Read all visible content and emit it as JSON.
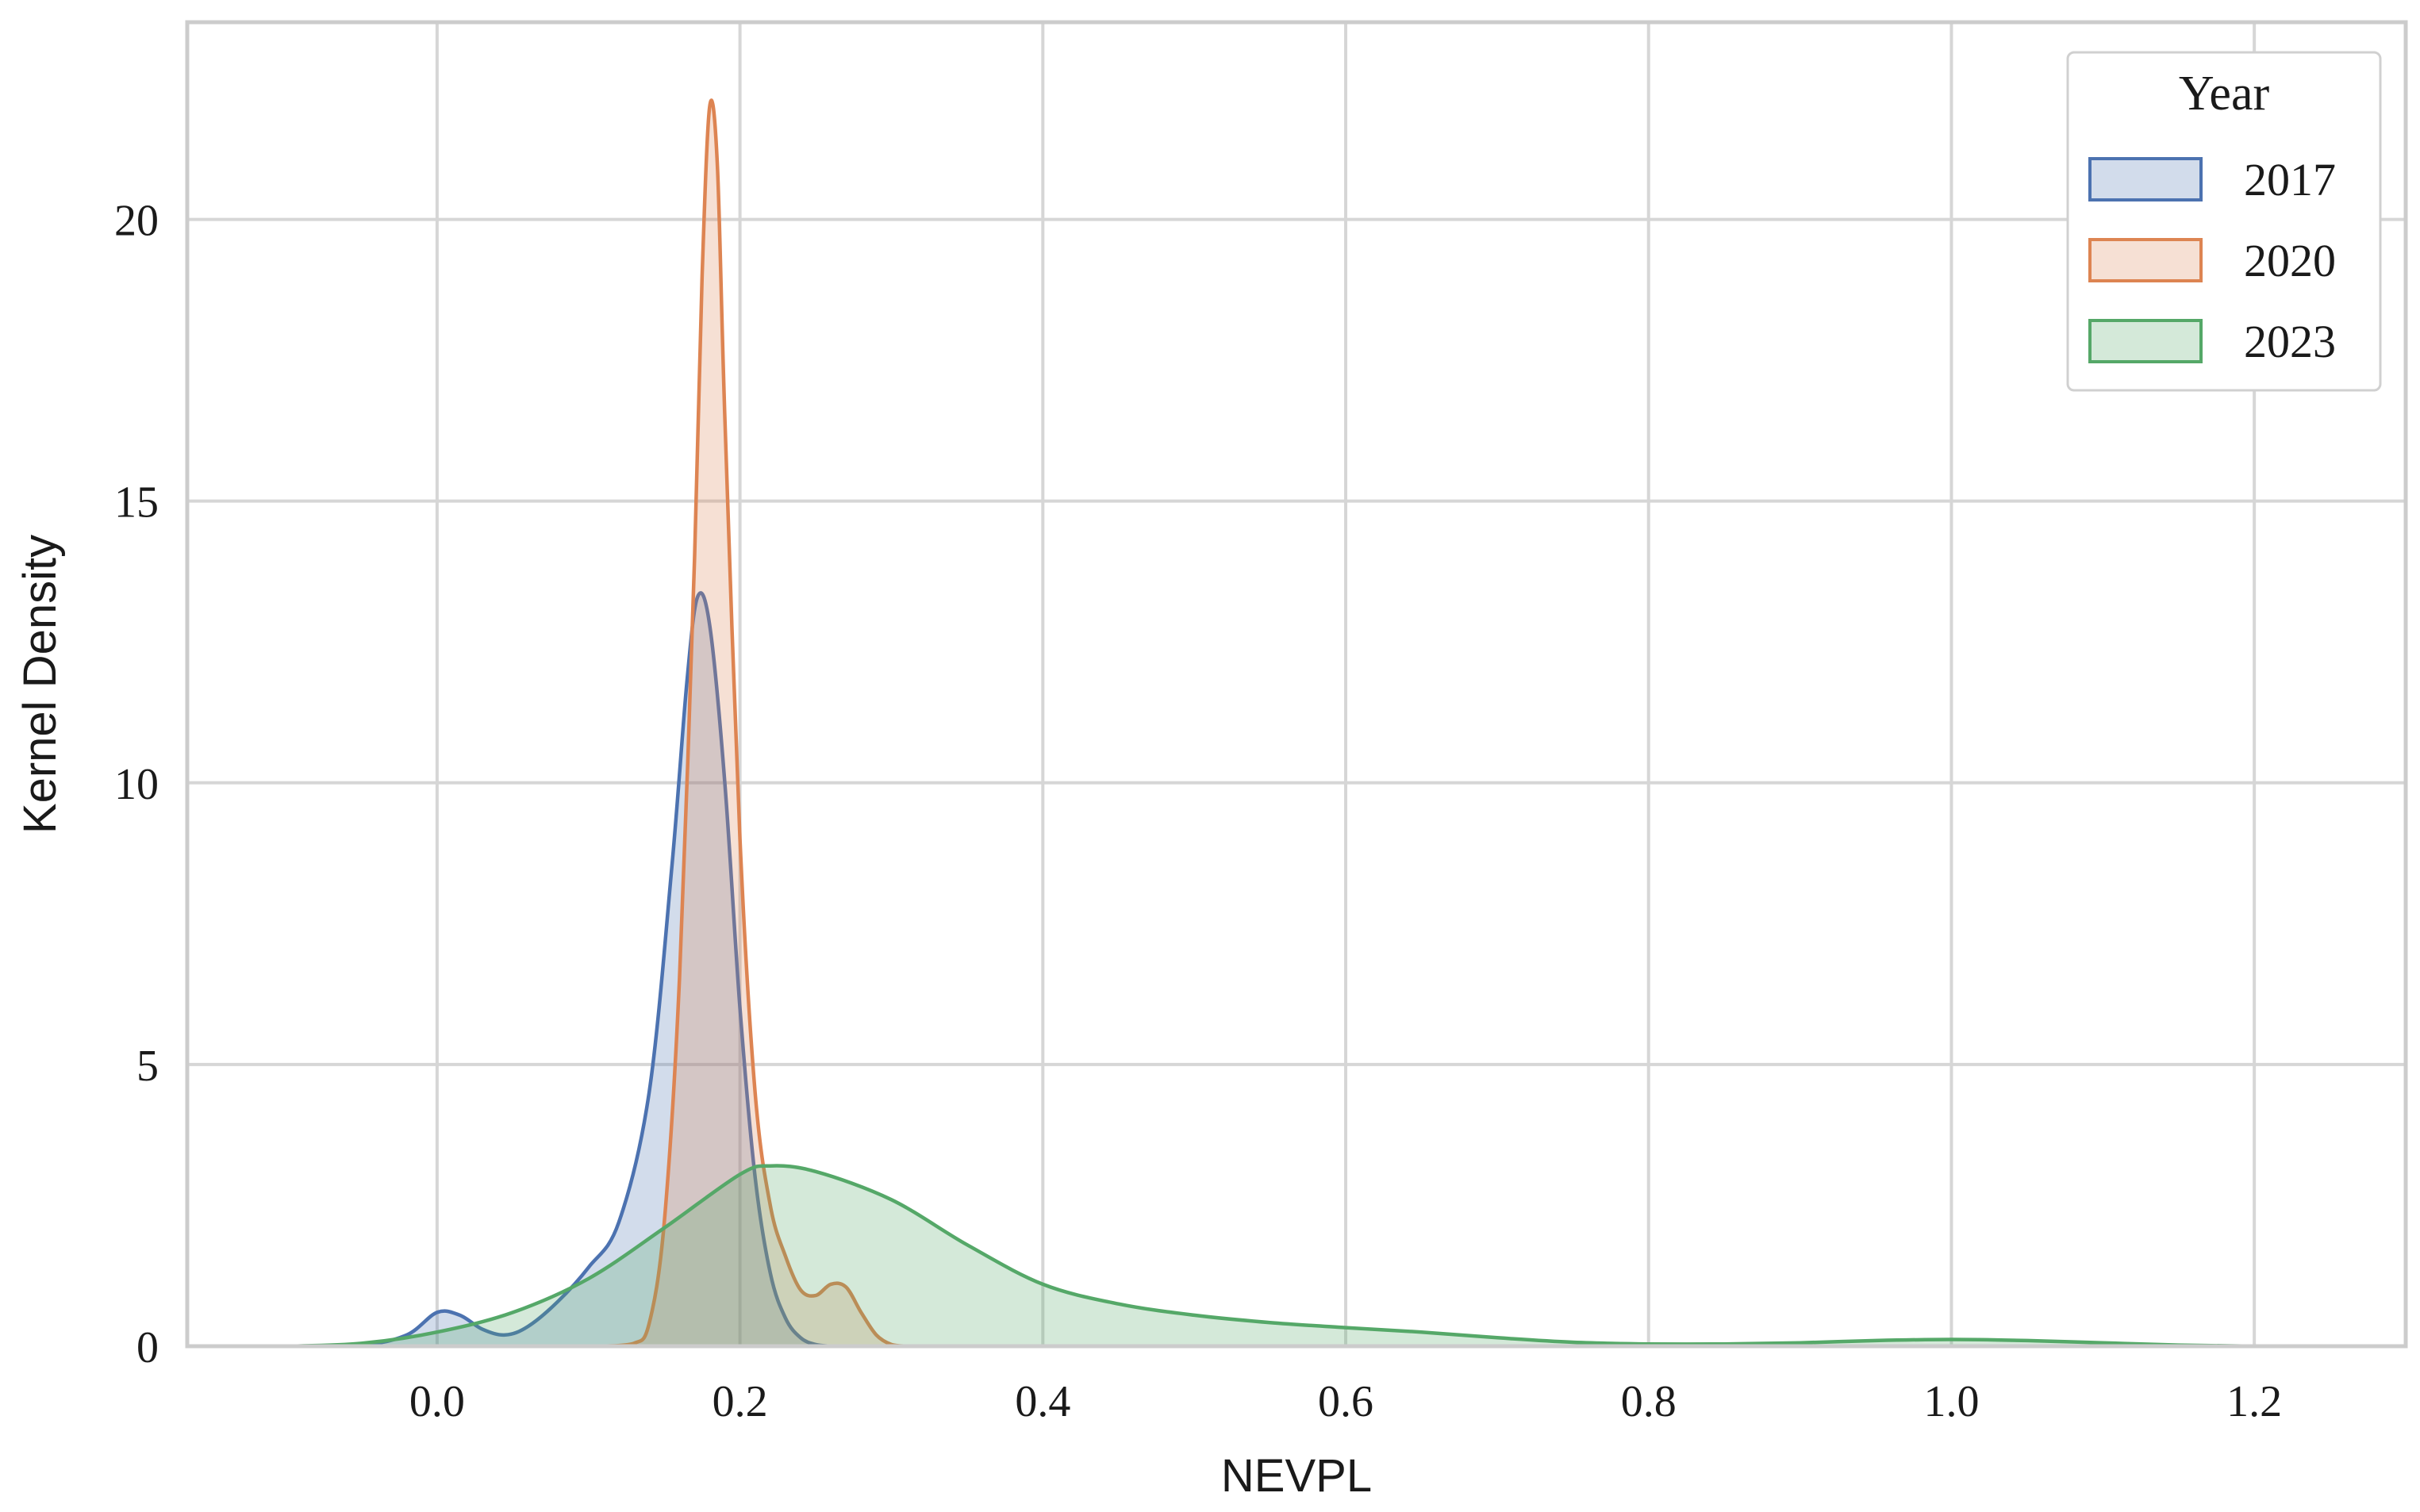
{
  "chart_data": {
    "type": "area",
    "title": "",
    "xlabel": "NEVPL",
    "ylabel": "Kernel Density",
    "xlim": [
      -0.165,
      1.3
    ],
    "ylim": [
      0,
      23.5
    ],
    "xticks": [
      0.0,
      0.2,
      0.4,
      0.6,
      0.8,
      1.0,
      1.2
    ],
    "xtick_labels": [
      "0.0",
      "0.2",
      "0.4",
      "0.6",
      "0.8",
      "1.0",
      "1.2"
    ],
    "yticks": [
      0,
      5,
      10,
      15,
      20
    ],
    "ytick_labels": [
      "0",
      "5",
      "10",
      "15",
      "20"
    ],
    "grid": true,
    "legend": {
      "title": "Year",
      "placement": "top-right"
    },
    "series": [
      {
        "name": "2017",
        "color": "#4c72b0",
        "fill_opacity": 0.25,
        "points": [
          [
            -0.1,
            0.0
          ],
          [
            -0.05,
            0.02
          ],
          [
            -0.02,
            0.2
          ],
          [
            0.0,
            0.6
          ],
          [
            0.015,
            0.55
          ],
          [
            0.03,
            0.3
          ],
          [
            0.045,
            0.2
          ],
          [
            0.06,
            0.35
          ],
          [
            0.08,
            0.8
          ],
          [
            0.1,
            1.4
          ],
          [
            0.12,
            2.2
          ],
          [
            0.14,
            4.5
          ],
          [
            0.155,
            8.5
          ],
          [
            0.165,
            11.8
          ],
          [
            0.172,
            13.3
          ],
          [
            0.18,
            12.8
          ],
          [
            0.19,
            10.0
          ],
          [
            0.2,
            6.0
          ],
          [
            0.21,
            3.0
          ],
          [
            0.22,
            1.3
          ],
          [
            0.23,
            0.5
          ],
          [
            0.24,
            0.15
          ],
          [
            0.25,
            0.03
          ],
          [
            0.26,
            0.0
          ]
        ]
      },
      {
        "name": "2020",
        "color": "#dd8452",
        "fill_opacity": 0.25,
        "points": [
          [
            0.11,
            0.0
          ],
          [
            0.13,
            0.05
          ],
          [
            0.14,
            0.4
          ],
          [
            0.15,
            2.2
          ],
          [
            0.16,
            6.5
          ],
          [
            0.17,
            14.0
          ],
          [
            0.175,
            19.0
          ],
          [
            0.18,
            22.0
          ],
          [
            0.185,
            21.0
          ],
          [
            0.19,
            16.5
          ],
          [
            0.2,
            9.0
          ],
          [
            0.21,
            4.5
          ],
          [
            0.22,
            2.5
          ],
          [
            0.23,
            1.6
          ],
          [
            0.24,
            1.0
          ],
          [
            0.25,
            0.9
          ],
          [
            0.26,
            1.1
          ],
          [
            0.27,
            1.05
          ],
          [
            0.28,
            0.6
          ],
          [
            0.29,
            0.2
          ],
          [
            0.3,
            0.03
          ],
          [
            0.31,
            0.0
          ]
        ]
      },
      {
        "name": "2023",
        "color": "#55a868",
        "fill_opacity": 0.25,
        "points": [
          [
            -0.1,
            0.0
          ],
          [
            -0.05,
            0.05
          ],
          [
            0.0,
            0.25
          ],
          [
            0.05,
            0.6
          ],
          [
            0.1,
            1.2
          ],
          [
            0.15,
            2.1
          ],
          [
            0.2,
            3.05
          ],
          [
            0.22,
            3.2
          ],
          [
            0.25,
            3.1
          ],
          [
            0.3,
            2.6
          ],
          [
            0.35,
            1.8
          ],
          [
            0.4,
            1.1
          ],
          [
            0.45,
            0.75
          ],
          [
            0.5,
            0.55
          ],
          [
            0.55,
            0.42
          ],
          [
            0.6,
            0.33
          ],
          [
            0.65,
            0.25
          ],
          [
            0.7,
            0.15
          ],
          [
            0.75,
            0.07
          ],
          [
            0.8,
            0.04
          ],
          [
            0.85,
            0.04
          ],
          [
            0.9,
            0.06
          ],
          [
            0.95,
            0.1
          ],
          [
            1.0,
            0.12
          ],
          [
            1.05,
            0.1
          ],
          [
            1.1,
            0.06
          ],
          [
            1.15,
            0.02
          ],
          [
            1.2,
            0.0
          ],
          [
            1.25,
            0.0
          ]
        ]
      }
    ]
  }
}
